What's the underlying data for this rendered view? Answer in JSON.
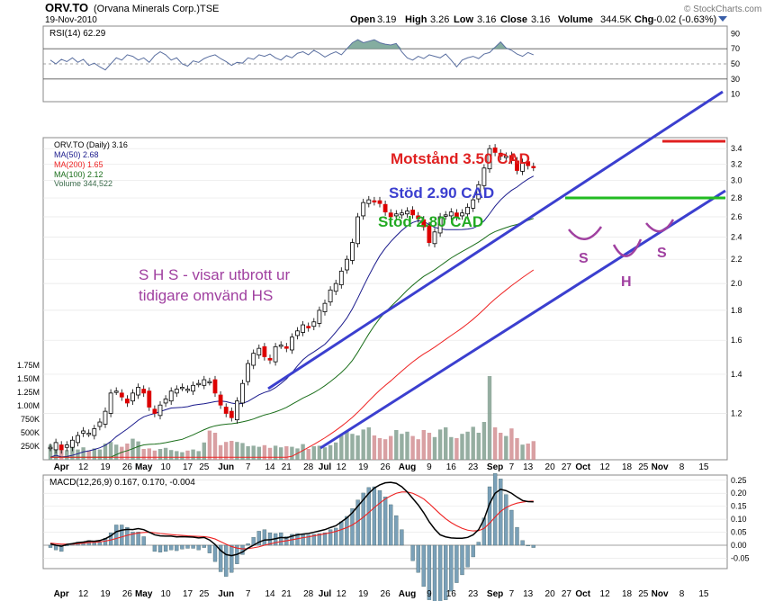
{
  "header": {
    "symbol": "ORV.TO",
    "company": "(Orvana Minerals Corp.)",
    "exchange": "TSE",
    "date": "19-Nov-2010",
    "brand": "© StockCharts.com",
    "quote": {
      "open_label": "Open",
      "open": "3.19",
      "high_label": "High",
      "high": "3.26",
      "low_label": "Low",
      "low": "3.16",
      "close_label": "Close",
      "close": "3.16",
      "volume_label": "Volume",
      "volume": "344.5K",
      "chg_label": "Chg",
      "chg": "-0.02 (-0.63%)"
    }
  },
  "colors": {
    "up": "#222222",
    "down": "#dd0000",
    "ma50": "#1a1a8c",
    "ma200": "#ee2222",
    "ma100": "#1a6e1a",
    "trend": "#3b3fcf",
    "resistance": "#e02020",
    "support": "#22bb22",
    "annotation_purple": "#a040a0",
    "volume": "#7a9a8a",
    "volume_down": "#d0888c",
    "rsi_fill": "#6f9f8f"
  },
  "chart_data": [
    {
      "type": "line",
      "panel": "rsi",
      "title": "RSI(14) 62.29",
      "ylim": [
        0,
        100
      ],
      "yticks": [
        10,
        30,
        50,
        70,
        90
      ],
      "values": [
        55,
        50,
        56,
        53,
        58,
        52,
        56,
        48,
        51,
        46,
        42,
        50,
        58,
        55,
        62,
        60,
        55,
        58,
        52,
        61,
        66,
        62,
        55,
        58,
        50,
        47,
        54,
        52,
        57,
        60,
        62,
        57,
        53,
        48,
        52,
        51,
        58,
        56,
        62,
        60,
        63,
        58,
        55,
        61,
        58,
        64,
        66,
        62,
        68,
        64,
        59,
        63,
        66,
        62,
        70,
        78,
        82,
        78,
        80,
        82,
        78,
        76,
        75,
        77,
        66,
        58,
        55,
        60,
        57,
        62,
        60,
        58,
        63,
        55,
        46,
        55,
        58,
        60,
        57,
        63,
        65,
        72,
        79,
        71,
        68,
        63,
        60,
        65,
        62
      ]
    },
    {
      "type": "candlestick",
      "panel": "price",
      "legend": [
        "ORV.TO (Daily) 3.16",
        "MA(50) 2.68",
        "MA(200) 1.65",
        "MA(100) 2.12",
        "Volume 344,522"
      ],
      "price_ticks": [
        "1.2",
        "1.4",
        "1.6",
        "1.8",
        "2.0",
        "2.2",
        "2.4",
        "2.6",
        "2.8",
        "3.0",
        "3.2",
        "3.4"
      ],
      "volume_ticks": [
        "250K",
        "500K",
        "750K",
        "1.00M",
        "1.25M",
        "1.50M",
        "1.75M"
      ],
      "ylim": [
        1.0,
        3.55
      ],
      "volume_max": 2000000,
      "closes": [
        1.05,
        1.07,
        1.04,
        1.06,
        1.08,
        1.1,
        1.12,
        1.11,
        1.13,
        1.16,
        1.21,
        1.3,
        1.31,
        1.28,
        1.25,
        1.3,
        1.33,
        1.3,
        1.23,
        1.2,
        1.24,
        1.27,
        1.31,
        1.32,
        1.33,
        1.32,
        1.34,
        1.35,
        1.37,
        1.36,
        1.3,
        1.24,
        1.2,
        1.18,
        1.26,
        1.35,
        1.46,
        1.52,
        1.55,
        1.5,
        1.48,
        1.56,
        1.57,
        1.55,
        1.62,
        1.66,
        1.7,
        1.68,
        1.72,
        1.8,
        1.85,
        1.95,
        2.0,
        2.1,
        2.2,
        2.35,
        2.6,
        2.75,
        2.78,
        2.76,
        2.74,
        2.65,
        2.6,
        2.63,
        2.64,
        2.66,
        2.62,
        2.58,
        2.5,
        2.35,
        2.45,
        2.6,
        2.62,
        2.65,
        2.6,
        2.64,
        2.7,
        2.78,
        2.95,
        3.15,
        3.4,
        3.35,
        3.3,
        3.3,
        3.25,
        3.12,
        3.22,
        3.18,
        3.16
      ],
      "volume": [
        280,
        240,
        210,
        180,
        260,
        190,
        230,
        170,
        210,
        190,
        300,
        330,
        280,
        240,
        300,
        390,
        340,
        200,
        210,
        170,
        200,
        220,
        180,
        160,
        140,
        170,
        190,
        160,
        320,
        540,
        500,
        270,
        330,
        350,
        330,
        310,
        250,
        260,
        240,
        270,
        220,
        260,
        230,
        250,
        240,
        210,
        290,
        200,
        250,
        260,
        230,
        270,
        320,
        450,
        520,
        480,
        450,
        560,
        600,
        450,
        400,
        380,
        440,
        550,
        480,
        520,
        440,
        380,
        550,
        500,
        420,
        560,
        600,
        420,
        400,
        480,
        520,
        610,
        500,
        700,
        1550,
        600,
        500,
        440,
        580,
        400,
        280,
        300,
        345
      ],
      "resistance": 3.5,
      "support": 2.8
    },
    {
      "type": "line",
      "panel": "macd",
      "title": "MACD(12,26,9) 0.167, 0.170, -0.004",
      "ylim": [
        -0.09,
        0.27
      ],
      "yticks": [
        -0.05,
        0.0,
        0.05,
        0.1,
        0.15,
        0.2,
        0.25
      ],
      "macd": [
        0.005,
        0.0,
        -0.004,
        0.003,
        0.006,
        0.01,
        0.012,
        0.016,
        0.015,
        0.018,
        0.025,
        0.036,
        0.052,
        0.058,
        0.061,
        0.06,
        0.064,
        0.06,
        0.05,
        0.04,
        0.036,
        0.035,
        0.035,
        0.032,
        0.033,
        0.032,
        0.031,
        0.028,
        0.03,
        0.02,
        0.003,
        -0.02,
        -0.036,
        -0.04,
        -0.035,
        -0.026,
        -0.011,
        0.0,
        0.012,
        0.02,
        0.021,
        0.025,
        0.03,
        0.028,
        0.035,
        0.04,
        0.043,
        0.045,
        0.05,
        0.055,
        0.06,
        0.068,
        0.075,
        0.09,
        0.105,
        0.125,
        0.15,
        0.175,
        0.2,
        0.22,
        0.232,
        0.24,
        0.242,
        0.238,
        0.225,
        0.205,
        0.18,
        0.155,
        0.125,
        0.09,
        0.062,
        0.04,
        0.032,
        0.028,
        0.027,
        0.027,
        0.03,
        0.04,
        0.06,
        0.1,
        0.16,
        0.2,
        0.215,
        0.21,
        0.2,
        0.185,
        0.172,
        0.168,
        0.167
      ],
      "signal": [
        0.008,
        0.006,
        0.004,
        0.004,
        0.004,
        0.006,
        0.008,
        0.01,
        0.011,
        0.013,
        0.016,
        0.02,
        0.026,
        0.032,
        0.038,
        0.043,
        0.047,
        0.049,
        0.05,
        0.048,
        0.045,
        0.043,
        0.041,
        0.039,
        0.038,
        0.036,
        0.035,
        0.034,
        0.033,
        0.03,
        0.024,
        0.014,
        0.004,
        -0.005,
        -0.011,
        -0.014,
        -0.013,
        -0.01,
        -0.006,
        0.0,
        0.005,
        0.01,
        0.014,
        0.017,
        0.021,
        0.025,
        0.029,
        0.032,
        0.036,
        0.04,
        0.044,
        0.048,
        0.053,
        0.06,
        0.068,
        0.078,
        0.092,
        0.108,
        0.126,
        0.145,
        0.162,
        0.178,
        0.19,
        0.2,
        0.205,
        0.205,
        0.2,
        0.19,
        0.178,
        0.16,
        0.14,
        0.12,
        0.102,
        0.087,
        0.075,
        0.065,
        0.058,
        0.055,
        0.056,
        0.065,
        0.085,
        0.108,
        0.13,
        0.145,
        0.155,
        0.162,
        0.166,
        0.169,
        0.17
      ]
    }
  ],
  "x_axis": {
    "labels": [
      {
        "text": "Apr",
        "i": 2,
        "bold": true
      },
      {
        "text": "12",
        "i": 6
      },
      {
        "text": "19",
        "i": 10
      },
      {
        "text": "26",
        "i": 14
      },
      {
        "text": "May",
        "i": 17,
        "bold": true
      },
      {
        "text": "10",
        "i": 21
      },
      {
        "text": "17",
        "i": 25
      },
      {
        "text": "25",
        "i": 28
      },
      {
        "text": "Jun",
        "i": 32,
        "bold": true
      },
      {
        "text": "7",
        "i": 36
      },
      {
        "text": "14",
        "i": 40
      },
      {
        "text": "21",
        "i": 43
      },
      {
        "text": "28",
        "i": 47
      },
      {
        "text": "Jul",
        "i": 50,
        "bold": true
      },
      {
        "text": "12",
        "i": 53
      },
      {
        "text": "19",
        "i": 57
      },
      {
        "text": "26",
        "i": 61
      },
      {
        "text": "Aug",
        "i": 65,
        "bold": true
      },
      {
        "text": "9",
        "i": 69
      },
      {
        "text": "16",
        "i": 73
      },
      {
        "text": "23",
        "i": 77
      },
      {
        "text": "Sep",
        "i": 81,
        "bold": true
      },
      {
        "text": "7",
        "i": 84
      },
      {
        "text": "13",
        "i": 87
      },
      {
        "text": "20",
        "i": 91
      },
      {
        "text": "27",
        "i": 94
      },
      {
        "text": "Oct",
        "i": 97,
        "bold": true
      },
      {
        "text": "12",
        "i": 101
      },
      {
        "text": "18",
        "i": 105
      },
      {
        "text": "25",
        "i": 108
      },
      {
        "text": "Nov",
        "i": 111,
        "bold": true
      },
      {
        "text": "8",
        "i": 115
      },
      {
        "text": "15",
        "i": 119
      }
    ]
  },
  "annotations": {
    "resistance_label": "Motstånd 3.50 CAD",
    "support1_label": "Stöd 2.90 CAD",
    "support2_label": "Stöd 2.80 CAD",
    "shs_line1": "S H S - visar utbrott ur",
    "shs_line2": "tidigare omvänd HS",
    "s_left": "S",
    "h_mid": "H",
    "s_right": "S"
  }
}
